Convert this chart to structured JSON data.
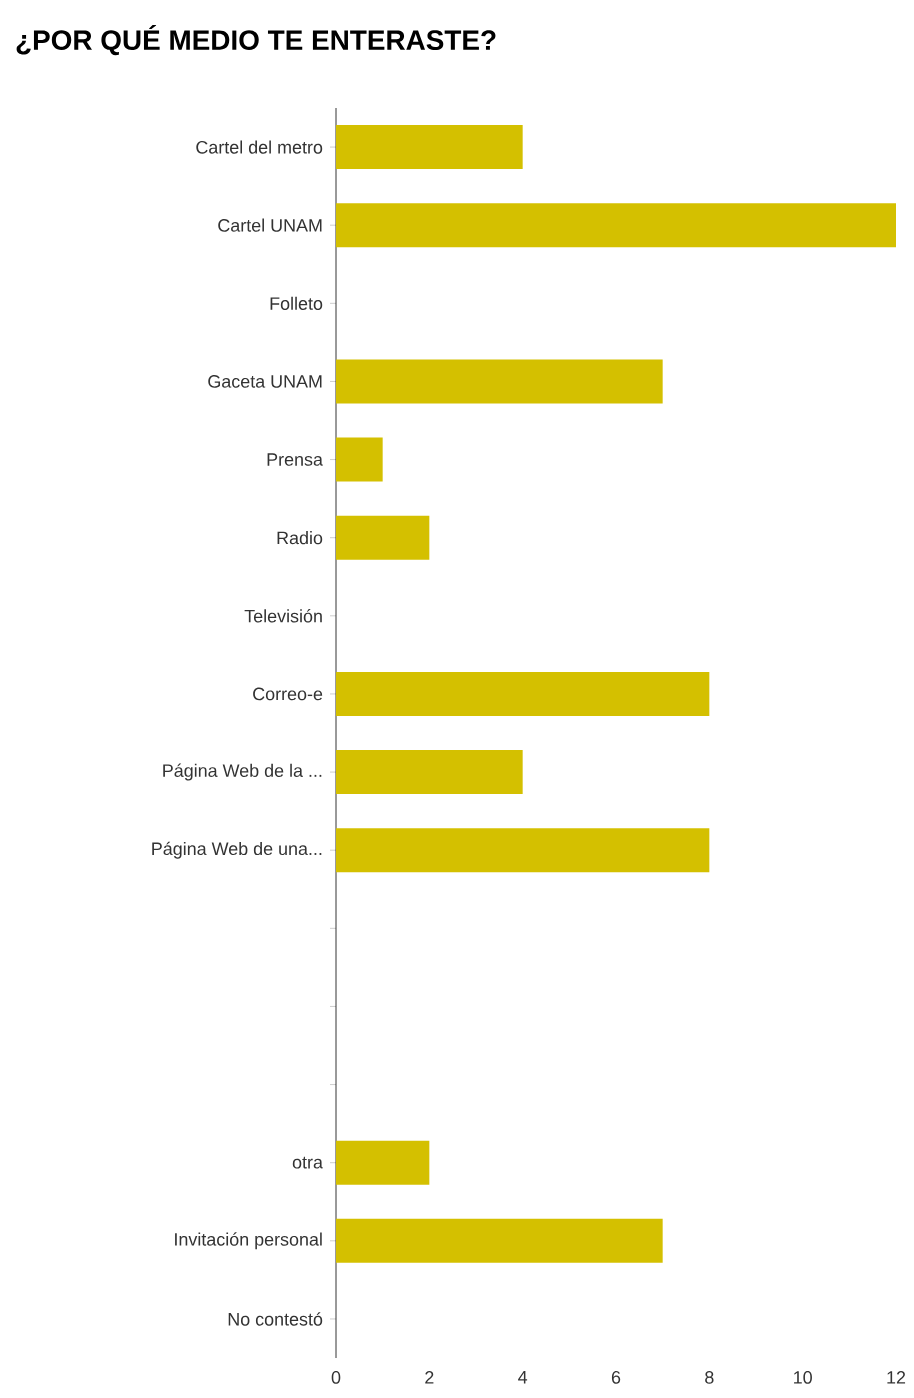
{
  "chart_data": {
    "type": "bar",
    "orientation": "horizontal",
    "title": "¿POR QUÉ MEDIO TE ENTERASTE?",
    "categories": [
      "Cartel del metro",
      "Cartel UNAM",
      "Folleto",
      "Gaceta UNAM",
      "Prensa",
      "Radio",
      "Televisión",
      "Correo-e",
      "Página Web de la ...",
      "Página Web de una...",
      null,
      null,
      null,
      "otra",
      "Invitación personal",
      "No contestó"
    ],
    "values": [
      4,
      12,
      0,
      7,
      1,
      2,
      0,
      8,
      4,
      8,
      0,
      0,
      0,
      2,
      7,
      0
    ],
    "color": "#d4c000",
    "xlim": [
      0,
      12
    ],
    "xticks": [
      0,
      2,
      4,
      6,
      8,
      10,
      12
    ]
  }
}
